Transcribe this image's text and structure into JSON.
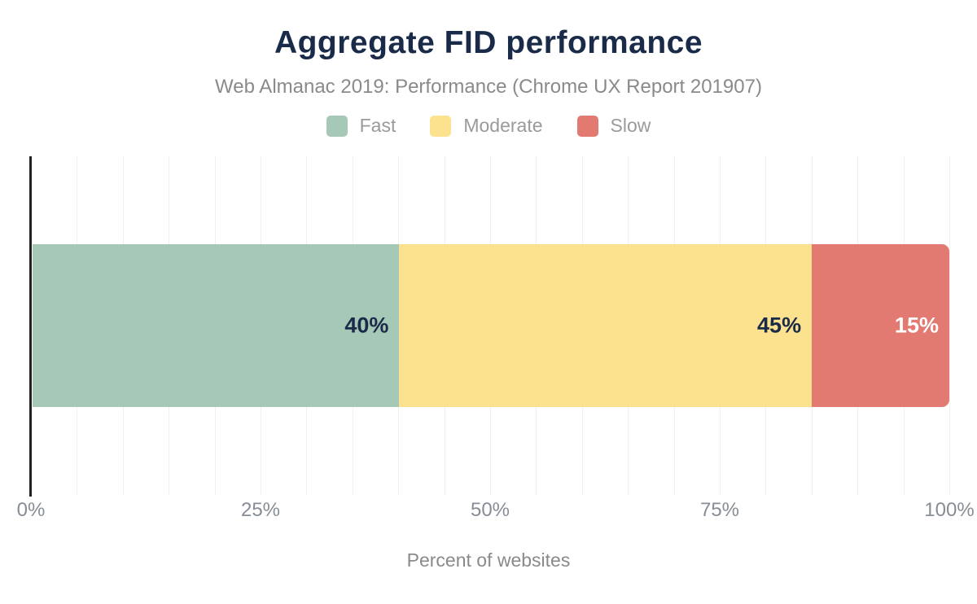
{
  "chart_data": {
    "type": "bar",
    "orientation": "horizontal",
    "stacked": true,
    "title": "Aggregate FID performance",
    "subtitle": "Web Almanac 2019: Performance (Chrome UX Report 201907)",
    "xlabel": "Percent of websites",
    "xlim": [
      0,
      100
    ],
    "gridline_interval_pct": 5,
    "x_ticks": [
      {
        "value": 0,
        "label": "0%"
      },
      {
        "value": 25,
        "label": "25%"
      },
      {
        "value": 50,
        "label": "50%"
      },
      {
        "value": 75,
        "label": "75%"
      },
      {
        "value": 100,
        "label": "100%"
      }
    ],
    "series": [
      {
        "name": "Fast",
        "values": [
          40
        ],
        "data_label": "40%",
        "color": "#a6c8b6",
        "label_color": "#1a2b49"
      },
      {
        "name": "Moderate",
        "values": [
          45
        ],
        "data_label": "45%",
        "color": "#fce28e",
        "label_color": "#1a2b49"
      },
      {
        "name": "Slow",
        "values": [
          15
        ],
        "data_label": "15%",
        "color": "#e27a71",
        "label_color": "#ffffff"
      }
    ],
    "legend": {
      "position": "top",
      "entries": [
        "Fast",
        "Moderate",
        "Slow"
      ]
    },
    "grid": "vertical gridlines every 5%",
    "colors": {
      "background": "#ffffff",
      "title": "#1a2b49",
      "subtitle": "#8a8a8a",
      "axis_line": "#212121",
      "gridline": "#f0f0f0",
      "tick_label": "#878d96",
      "legend_label": "#9a9a9a"
    }
  }
}
